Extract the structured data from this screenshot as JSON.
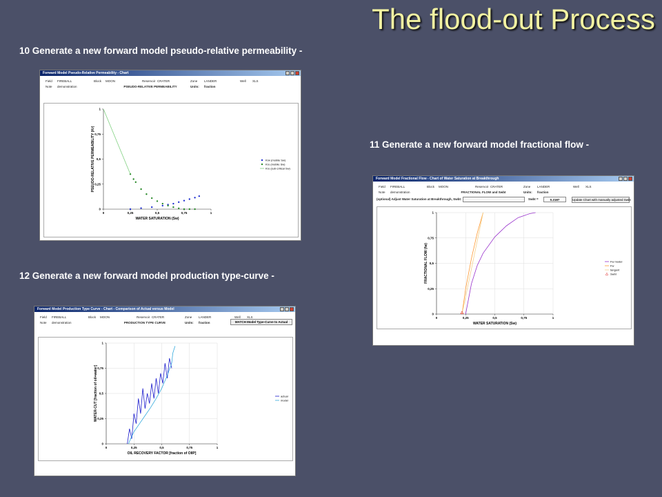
{
  "slide": {
    "title": "The flood-out Process",
    "steps": [
      "10 Generate a new forward model pseudo-relative permeability -",
      "11 Generate a new forward model fractional flow -",
      "12 Generate a new forward model production type-curve -"
    ]
  },
  "windows": [
    {
      "title": "Forward Model Pseudo-Relative Permeability - Chart",
      "fields": [
        [
          "Field",
          "FIREBALL"
        ],
        [
          "Block",
          "MOON"
        ],
        [
          "Reservoir",
          "CRATER"
        ],
        [
          "Zone",
          "LANDER"
        ],
        [
          "Well",
          "XLS"
        ]
      ],
      "note": [
        "Note",
        "demonstration"
      ],
      "heading": "PSEUDO-RELATIVE PERMEABILITY",
      "units": [
        "Units:",
        "fraction"
      ],
      "chart": {
        "type": "line",
        "xlabel": "WATER SATURATION (Sw)",
        "ylabel": "PSEUDO-RELATIVE PERMEABILITY (Kr)",
        "xlim": [
          0,
          1
        ],
        "ylim": [
          0,
          1
        ],
        "xticks": [
          0,
          {
            "value": 0.25,
            "label": "0,25"
          },
          {
            "value": 0.5,
            "label": "0,5"
          },
          {
            "value": 0.75,
            "label": "0,75"
          },
          1
        ],
        "yticks": [
          0,
          {
            "value": 0.25,
            "label": "0,25"
          },
          {
            "value": 0.5,
            "label": "0,5"
          },
          {
            "value": 0.75,
            "label": "0,75"
          },
          1
        ],
        "grid": false,
        "series": [
          {
            "name": "Krw (mobile Sw)",
            "type": "scatter",
            "color": "#1f2fd0",
            "x": [
              0.25,
              0.35,
              0.45,
              0.55,
              0.6,
              0.65,
              0.7,
              0.75,
              0.8,
              0.85,
              0.89
            ],
            "values": [
              0,
              0.01,
              0.02,
              0.035,
              0.045,
              0.055,
              0.07,
              0.085,
              0.1,
              0.115,
              0.13
            ]
          },
          {
            "name": "Kro (mobile Sw)",
            "type": "scatter",
            "color": "#2a8a2a",
            "x": [
              0.25,
              0.28,
              0.3,
              0.35,
              0.4,
              0.45,
              0.5,
              0.55,
              0.6,
              0.65,
              0.7,
              0.75,
              0.8,
              0.85
            ],
            "values": [
              0.35,
              0.3,
              0.27,
              0.2,
              0.15,
              0.11,
              0.08,
              0.055,
              0.035,
              0.02,
              0.008,
              0,
              0,
              0
            ]
          },
          {
            "name": "Kro (sub-critical Sw)",
            "type": "line",
            "color": "#7fd07f",
            "x": [
              0,
              0.25
            ],
            "values": [
              1,
              0.35
            ]
          }
        ]
      }
    },
    {
      "title": "Forward Model Fractional Flow - Chart of Water Saturation at Breakthrough",
      "fields": [
        [
          "Field",
          "FIREBALL"
        ],
        [
          "Block",
          "MOON"
        ],
        [
          "Reservoir",
          "CRATER"
        ],
        [
          "Zone",
          "LANDER"
        ],
        [
          "Well",
          "XLS"
        ]
      ],
      "note": [
        "Note",
        "demonstration"
      ],
      "heading": "FRACTIONAL FLOW and Swbt",
      "units": [
        "Units:",
        "fraction"
      ],
      "swbt_prompt": "(optional) Adjust Water Saturation at Breakthrough, Swbt:",
      "swbt_label": "Swbt =",
      "swbt_value": "0.2187",
      "button": "Update Chart with manually adjusted Swbt",
      "chart": {
        "type": "line",
        "xlabel": "WATER SATURATION (Sw)",
        "ylabel": "FRACTIONAL FLOW (fw)",
        "xlim": [
          0,
          1
        ],
        "ylim": [
          0,
          1
        ],
        "xticks": [
          0,
          {
            "value": 0.25,
            "label": "0,25"
          },
          {
            "value": 0.5,
            "label": "0,5"
          },
          {
            "value": 0.75,
            "label": "0,75"
          },
          1
        ],
        "yticks": [
          0,
          {
            "value": 0.25,
            "label": "0,25"
          },
          {
            "value": 0.5,
            "label": "0,5"
          },
          {
            "value": 0.75,
            "label": "0,75"
          },
          1
        ],
        "grid": true,
        "series": [
          {
            "name": "Fw model",
            "type": "line",
            "color": "#9933cc",
            "x": [
              0.25,
              0.3,
              0.35,
              0.4,
              0.5,
              0.6,
              0.7,
              0.8,
              0.85
            ],
            "values": [
              0,
              0.3,
              0.48,
              0.6,
              0.76,
              0.87,
              0.95,
              0.99,
              1
            ]
          },
          {
            "name": "Fw",
            "type": "line",
            "color": "#ff9933",
            "x": [
              0.2187,
              0.25,
              0.3,
              0.35,
              0.4
            ],
            "values": [
              0,
              0.25,
              0.55,
              0.8,
              1
            ]
          },
          {
            "name": "tangent",
            "type": "line",
            "color": "#f5d08a",
            "x": [
              0.2187,
              0.4
            ],
            "values": [
              0,
              1
            ]
          },
          {
            "name": "Swbt",
            "type": "marker",
            "color": "#e03030",
            "x": [
              0.2187
            ],
            "values": [
              0
            ]
          }
        ]
      }
    },
    {
      "title": "Forward Model Production Type Curve - Chart - Comparison of Actual versus Model",
      "fields": [
        [
          "Field",
          "FIREBALL"
        ],
        [
          "Block",
          "MOON"
        ],
        [
          "Reservoir",
          "CRATER"
        ],
        [
          "Zone",
          "LANDER"
        ],
        [
          "Well",
          "XLS"
        ]
      ],
      "note": [
        "Note",
        "demonstration"
      ],
      "heading": "PRODUCTION TYPE CURVE",
      "units": [
        "Units:",
        "fraction"
      ],
      "button": "MATCH Model Type-Curve to Actual",
      "chart": {
        "type": "line",
        "xlabel": "OIL RECOVERY FACTOR [fraction of OIIP]",
        "ylabel": "WATER-CUT [fraction of oil+water]",
        "xlim": [
          0,
          1
        ],
        "ylim": [
          0,
          1
        ],
        "xticks": [
          0,
          {
            "value": 0.25,
            "label": "0,25"
          },
          {
            "value": 0.5,
            "label": "0,5"
          },
          {
            "value": 0.75,
            "label": "0,75"
          },
          1
        ],
        "yticks": [
          0,
          {
            "value": 0.25,
            "label": "0,25"
          },
          {
            "value": 0.5,
            "label": "0,5"
          },
          {
            "value": 0.75,
            "label": "0,75"
          },
          1
        ],
        "grid": true,
        "series": [
          {
            "name": "actual",
            "type": "line",
            "color": "#1a1acc",
            "x": [
              0.19,
              0.21,
              0.23,
              0.25,
              0.27,
              0.29,
              0.31,
              0.33,
              0.35,
              0.37,
              0.39,
              0.41,
              0.43,
              0.45,
              0.47,
              0.49,
              0.51,
              0.53,
              0.55,
              0.57,
              0.59
            ],
            "values": [
              0,
              0.15,
              0.05,
              0.3,
              0.2,
              0.45,
              0.3,
              0.55,
              0.35,
              0.5,
              0.4,
              0.6,
              0.45,
              0.65,
              0.5,
              0.7,
              0.6,
              0.8,
              0.65,
              0.85,
              0.75
            ]
          },
          {
            "name": "model",
            "type": "line",
            "color": "#33aadd",
            "x": [
              0.2,
              0.22,
              0.25,
              0.3,
              0.35,
              0.4,
              0.45,
              0.5,
              0.55,
              0.59,
              0.6,
              0.62
            ],
            "values": [
              0,
              0.05,
              0.12,
              0.2,
              0.28,
              0.36,
              0.45,
              0.55,
              0.68,
              0.8,
              0.9,
              0.97
            ]
          }
        ]
      }
    }
  ]
}
